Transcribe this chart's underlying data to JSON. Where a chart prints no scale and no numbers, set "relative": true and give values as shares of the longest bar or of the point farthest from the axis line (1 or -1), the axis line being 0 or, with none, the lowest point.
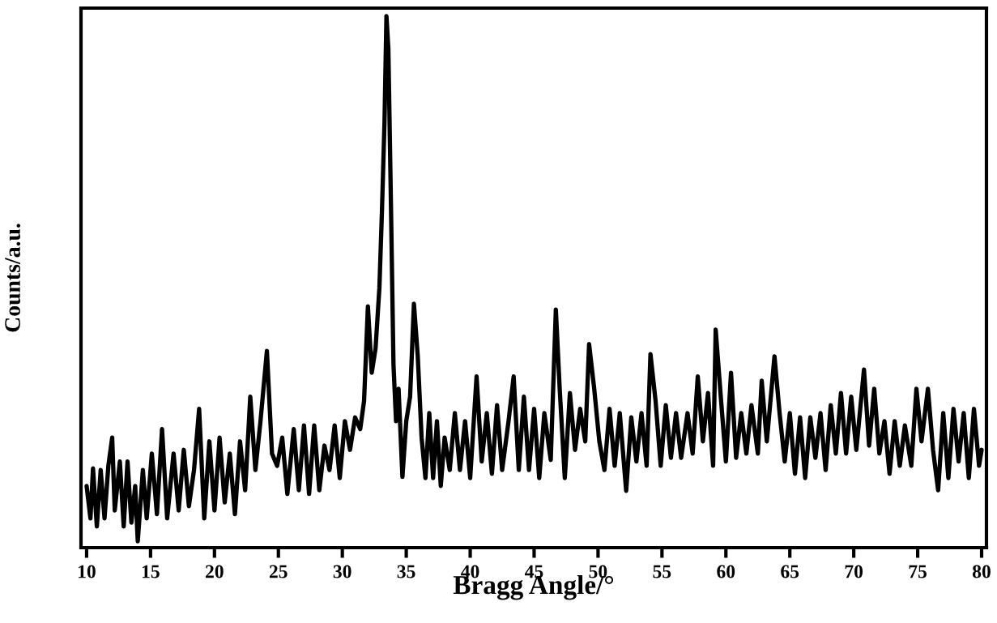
{
  "chart_data": {
    "type": "line",
    "xlabel": "Bragg Angle/°",
    "ylabel": "Counts/a.u.",
    "relative": true,
    "tick_labels": "x",
    "color": "#000000",
    "xlim": [
      9.56,
      80.38
    ],
    "xticks": [
      10,
      15,
      20,
      25,
      30,
      35,
      40,
      45,
      50,
      55,
      60,
      65,
      70,
      75,
      80
    ],
    "x": [
      10.0,
      10.3,
      10.5,
      10.8,
      11.1,
      11.4,
      11.7,
      12.0,
      12.2,
      12.6,
      12.9,
      13.2,
      13.5,
      13.8,
      14.0,
      14.4,
      14.7,
      15.1,
      15.5,
      15.9,
      16.3,
      16.8,
      17.2,
      17.6,
      18.0,
      18.4,
      18.8,
      19.2,
      19.6,
      20.0,
      20.4,
      20.8,
      21.2,
      21.6,
      22.0,
      22.4,
      22.8,
      23.2,
      23.6,
      24.1,
      24.5,
      24.9,
      25.3,
      25.7,
      26.2,
      26.6,
      27.0,
      27.4,
      27.8,
      28.2,
      28.6,
      29.0,
      29.4,
      29.8,
      30.2,
      30.6,
      31.0,
      31.4,
      31.7,
      32.0,
      32.3,
      32.6,
      32.9,
      33.1,
      33.3,
      33.45,
      33.6,
      33.8,
      34.0,
      34.2,
      34.4,
      34.7,
      35.0,
      35.3,
      35.6,
      35.9,
      36.2,
      36.5,
      36.8,
      37.1,
      37.4,
      37.7,
      38.0,
      38.4,
      38.8,
      39.2,
      39.6,
      40.0,
      40.5,
      40.9,
      41.3,
      41.7,
      42.1,
      42.5,
      43.0,
      43.4,
      43.8,
      44.2,
      44.6,
      45.0,
      45.4,
      45.8,
      46.3,
      46.7,
      47.0,
      47.4,
      47.8,
      48.2,
      48.6,
      49.0,
      49.3,
      49.7,
      50.1,
      50.5,
      50.9,
      51.3,
      51.7,
      52.2,
      52.6,
      53.0,
      53.4,
      53.8,
      54.1,
      54.5,
      54.9,
      55.3,
      55.7,
      56.1,
      56.5,
      57.0,
      57.4,
      57.8,
      58.2,
      58.6,
      59.0,
      59.2,
      59.6,
      60.0,
      60.4,
      60.8,
      61.2,
      61.6,
      62.0,
      62.5,
      62.8,
      63.2,
      63.8,
      64.2,
      64.6,
      65.0,
      65.4,
      65.8,
      66.2,
      66.6,
      67.0,
      67.4,
      67.8,
      68.2,
      68.6,
      69.0,
      69.4,
      69.8,
      70.2,
      70.8,
      71.2,
      71.6,
      72.0,
      72.4,
      72.8,
      73.2,
      73.6,
      74.0,
      74.5,
      74.9,
      75.3,
      75.8,
      76.2,
      76.6,
      77.0,
      77.4,
      77.8,
      78.2,
      78.6,
      79.0,
      79.4,
      79.8,
      80.0
    ],
    "values": [
      0.116,
      0.055,
      0.149,
      0.04,
      0.146,
      0.055,
      0.154,
      0.207,
      0.07,
      0.162,
      0.04,
      0.162,
      0.047,
      0.116,
      0.012,
      0.146,
      0.055,
      0.177,
      0.063,
      0.223,
      0.055,
      0.177,
      0.07,
      0.184,
      0.078,
      0.146,
      0.261,
      0.055,
      0.2,
      0.07,
      0.207,
      0.085,
      0.177,
      0.063,
      0.2,
      0.108,
      0.284,
      0.146,
      0.238,
      0.37,
      0.177,
      0.154,
      0.207,
      0.101,
      0.223,
      0.108,
      0.23,
      0.101,
      0.23,
      0.108,
      0.192,
      0.146,
      0.23,
      0.131,
      0.238,
      0.184,
      0.245,
      0.223,
      0.276,
      0.454,
      0.329,
      0.375,
      0.489,
      0.634,
      0.802,
      1.0,
      0.939,
      0.649,
      0.345,
      0.238,
      0.299,
      0.133,
      0.238,
      0.284,
      0.459,
      0.36,
      0.207,
      0.131,
      0.253,
      0.131,
      0.238,
      0.116,
      0.207,
      0.146,
      0.253,
      0.146,
      0.238,
      0.131,
      0.322,
      0.162,
      0.253,
      0.139,
      0.268,
      0.146,
      0.238,
      0.322,
      0.146,
      0.284,
      0.146,
      0.261,
      0.131,
      0.253,
      0.165,
      0.448,
      0.299,
      0.131,
      0.291,
      0.184,
      0.261,
      0.2,
      0.383,
      0.299,
      0.2,
      0.146,
      0.261,
      0.154,
      0.253,
      0.107,
      0.245,
      0.162,
      0.253,
      0.154,
      0.364,
      0.276,
      0.154,
      0.268,
      0.169,
      0.253,
      0.169,
      0.253,
      0.177,
      0.322,
      0.2,
      0.291,
      0.154,
      0.41,
      0.284,
      0.162,
      0.329,
      0.169,
      0.253,
      0.177,
      0.268,
      0.177,
      0.314,
      0.2,
      0.36,
      0.253,
      0.162,
      0.253,
      0.139,
      0.245,
      0.131,
      0.245,
      0.169,
      0.253,
      0.146,
      0.268,
      0.177,
      0.291,
      0.177,
      0.284,
      0.184,
      0.335,
      0.192,
      0.299,
      0.177,
      0.238,
      0.139,
      0.238,
      0.154,
      0.23,
      0.154,
      0.299,
      0.2,
      0.299,
      0.184,
      0.108,
      0.253,
      0.131,
      0.261,
      0.162,
      0.253,
      0.131,
      0.261,
      0.154,
      0.184
    ]
  }
}
